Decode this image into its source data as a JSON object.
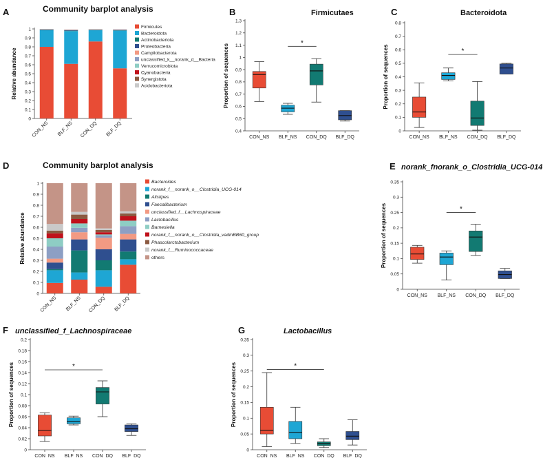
{
  "colors": {
    "Firmicutes": "#e84c35",
    "Bacteroidota": "#1ea6d4",
    "Actinobacteriota": "#127a72",
    "Proteobacteria": "#2f4f8f",
    "Campilobacterota": "#f29a83",
    "unclassified": "#8d9fc4",
    "Verrucomicrobiota": "#8ecdc4",
    "Cyanobacteria": "#c0111b",
    "Synergistota": "#8b5a41",
    "Acidobacteriota": "#c9c9c9",
    "g_Bacteroides": "#e84c35",
    "g_Clostridia014": "#1ea6d4",
    "g_Alistipes": "#127a72",
    "g_Faecalibacterium": "#2f4f8f",
    "g_Lachno": "#f29a83",
    "g_Lacto": "#8d9fc4",
    "g_Barnesiella": "#8ecdc4",
    "g_vadin": "#c0111b",
    "g_Phascol": "#8b5a41",
    "g_Rumino": "#c9c9c9",
    "g_others": "#c49487",
    "box_CON_NS": "#e84c35",
    "box_BLF_NS": "#1ea6d4",
    "box_CON_DQ": "#127a72",
    "box_BLF_DQ": "#2f4f8f"
  },
  "chart_data": [
    {
      "id": "A",
      "panel_letter": "A",
      "type": "bar",
      "stacked": true,
      "title": "Community barplot analysis",
      "ylabel": "Relative abundance",
      "ylim": [
        0,
        1
      ],
      "yticks": [
        "0",
        "0.1",
        "0.2",
        "0.3",
        "0.4",
        "0.5",
        "0.6",
        "0.7",
        "0.8",
        "0.9",
        "1"
      ],
      "categories": [
        "CON_NS",
        "BLF_NS",
        "CON_DQ",
        "BLF_DQ"
      ],
      "series": [
        {
          "name": "Firmicutes",
          "color_key": "Firmicutes",
          "values": [
            0.8,
            0.61,
            0.86,
            0.56
          ]
        },
        {
          "name": "Bacteroidota",
          "color_key": "Bacteroidota",
          "values": [
            0.185,
            0.365,
            0.125,
            0.42
          ]
        },
        {
          "name": "Actinobacteriota",
          "color_key": "Actinobacteriota",
          "values": [
            0.004,
            0.005,
            0.003,
            0.004
          ]
        },
        {
          "name": "Proteobacteria",
          "color_key": "Proteobacteria",
          "values": [
            0.004,
            0.006,
            0.003,
            0.004
          ]
        },
        {
          "name": "Campilobacterota",
          "color_key": "Campilobacterota",
          "values": [
            0.001,
            0.002,
            0.001,
            0.002
          ]
        },
        {
          "name": "unclassified_k__norank_d__Bacteria",
          "color_key": "unclassified",
          "values": [
            0.001,
            0.002,
            0.001,
            0.002
          ]
        },
        {
          "name": "Verrucomicrobiota",
          "color_key": "Verrucomicrobiota",
          "values": [
            0.001,
            0.001,
            0.001,
            0.001
          ]
        },
        {
          "name": "Cyanobacteria",
          "color_key": "Cyanobacteria",
          "values": [
            0.001,
            0.001,
            0.001,
            0.001
          ]
        },
        {
          "name": "Synergistota",
          "color_key": "Synergistota",
          "values": [
            0.001,
            0.001,
            0.001,
            0.001
          ]
        },
        {
          "name": "Acidobacteriota",
          "color_key": "Acidobacteriota",
          "values": [
            0.001,
            0.001,
            0.001,
            0.001
          ]
        }
      ]
    },
    {
      "id": "B",
      "panel_letter": "B",
      "type": "box",
      "title": "Firmicutaes",
      "title_italic": false,
      "ylabel": "Proportion of sequences",
      "ylim": [
        0.4,
        1.3
      ],
      "yticks": [
        "0.4",
        "0.5",
        "0.6",
        "0.7",
        "0.8",
        "0.9",
        "1",
        "1.1",
        "1.2",
        "1.3"
      ],
      "categories": [
        "CON_NS",
        "BLF_NS",
        "CON_DQ",
        "BLF_DQ"
      ],
      "boxes": [
        {
          "name": "CON_NS",
          "color_key": "box_CON_NS",
          "min": 0.64,
          "q1": 0.75,
          "median": 0.86,
          "q3": 0.885,
          "max": 0.965
        },
        {
          "name": "BLF_NS",
          "color_key": "box_BLF_NS",
          "min": 0.535,
          "q1": 0.555,
          "median": 0.585,
          "q3": 0.61,
          "max": 0.625
        },
        {
          "name": "CON_DQ",
          "color_key": "box_CON_DQ",
          "min": 0.635,
          "q1": 0.775,
          "median": 0.89,
          "q3": 0.945,
          "max": 0.99
        },
        {
          "name": "BLF_DQ",
          "color_key": "box_BLF_DQ",
          "min": 0.48,
          "q1": 0.49,
          "median": 0.525,
          "q3": 0.565,
          "max": 0.565
        }
      ],
      "significance": {
        "label": "*",
        "from": "BLF_NS",
        "to": "CON_DQ",
        "y": 1.09
      }
    },
    {
      "id": "C",
      "panel_letter": "C",
      "type": "box",
      "title": "Bacteroidota",
      "title_italic": false,
      "ylabel": "Proportion of sequences",
      "ylim": [
        0,
        0.8
      ],
      "yticks": [
        "0",
        "0.1",
        "0.2",
        "0.3",
        "0.4",
        "0.5",
        "0.6",
        "0.7",
        "0.8"
      ],
      "categories": [
        "CON_NS",
        "BLF_NS",
        "CON_DQ",
        "BLF_DQ"
      ],
      "boxes": [
        {
          "name": "CON_NS",
          "color_key": "box_CON_NS",
          "min": 0.025,
          "q1": 0.1,
          "median": 0.14,
          "q3": 0.25,
          "max": 0.355
        },
        {
          "name": "BLF_NS",
          "color_key": "box_BLF_NS",
          "min": 0.37,
          "q1": 0.38,
          "median": 0.41,
          "q3": 0.43,
          "max": 0.465
        },
        {
          "name": "CON_DQ",
          "color_key": "box_CON_DQ",
          "min": 0.005,
          "q1": 0.04,
          "median": 0.095,
          "q3": 0.22,
          "max": 0.365
        },
        {
          "name": "BLF_DQ",
          "color_key": "box_BLF_DQ",
          "min": 0.42,
          "q1": 0.42,
          "median": 0.465,
          "q3": 0.495,
          "max": 0.5
        }
      ],
      "significance": {
        "label": "*",
        "from": "BLF_NS",
        "to": "CON_DQ",
        "y": 0.565
      }
    },
    {
      "id": "D",
      "panel_letter": "D",
      "type": "bar",
      "stacked": true,
      "title": "Community barplot analysis",
      "ylabel": "Relative abundance",
      "ylim": [
        0,
        1
      ],
      "yticks": [
        "0",
        "0.1",
        "0.2",
        "0.3",
        "0.4",
        "0.5",
        "0.6",
        "0.7",
        "0.8",
        "0.9",
        "1"
      ],
      "categories": [
        "CON_NS",
        "BLF_NS",
        "CON_DQ",
        "BLF_DQ"
      ],
      "series": [
        {
          "name": "Bacteroides",
          "color_key": "g_Bacteroides",
          "values": [
            0.095,
            0.125,
            0.06,
            0.26
          ]
        },
        {
          "name": "norank_f__norank_o__Clostridia_UCG-014",
          "color_key": "g_Clostridia014",
          "values": [
            0.115,
            0.065,
            0.15,
            0.05
          ]
        },
        {
          "name": "Alistipes",
          "color_key": "g_Alistipes",
          "values": [
            0.01,
            0.2,
            0.09,
            0.07
          ]
        },
        {
          "name": "Faecalibacterium",
          "color_key": "g_Faecalibacterium",
          "values": [
            0.06,
            0.1,
            0.1,
            0.11
          ]
        },
        {
          "name": "unclassified_f__Lachnospiraceae",
          "color_key": "g_Lachno",
          "values": [
            0.035,
            0.065,
            0.105,
            0.05
          ]
        },
        {
          "name": "Lactobacillus",
          "color_key": "g_Lacto",
          "values": [
            0.11,
            0.04,
            0.02,
            0.07
          ]
        },
        {
          "name": "Barnesiella",
          "color_key": "g_Barnesiella",
          "values": [
            0.075,
            0.04,
            0.01,
            0.05
          ]
        },
        {
          "name": "norank_f__norank_o__Clostridia_vadinBB60_group",
          "color_key": "g_vadin",
          "values": [
            0.045,
            0.04,
            0.02,
            0.04
          ]
        },
        {
          "name": "Phascolarctobacterium",
          "color_key": "g_Phascol",
          "values": [
            0.025,
            0.04,
            0.02,
            0.025
          ]
        },
        {
          "name": "norank_f__Ruminococcaceae",
          "color_key": "g_Rumino",
          "values": [
            0.06,
            0.025,
            0.015,
            0.02
          ]
        },
        {
          "name": "others",
          "color_key": "g_others",
          "values": [
            0.37,
            0.26,
            0.41,
            0.255
          ]
        }
      ]
    },
    {
      "id": "E",
      "panel_letter": "E",
      "type": "box",
      "title": "norank_fnorank_o_Clostridia_UCG-014",
      "title_italic": true,
      "ylabel": "Proportion of sequences",
      "ylim": [
        0,
        0.35
      ],
      "yticks": [
        "0",
        "0.05",
        "0.1",
        "0.15",
        "0.2",
        "0.25",
        "0.3",
        "0.35"
      ],
      "categories": [
        "CON_NS",
        "BLF_NS",
        "CON_DQ",
        "BLF_DQ"
      ],
      "boxes": [
        {
          "name": "CON_NS",
          "color_key": "box_CON_NS",
          "min": 0.085,
          "q1": 0.097,
          "median": 0.115,
          "q3": 0.137,
          "max": 0.143
        },
        {
          "name": "BLF_NS",
          "color_key": "box_BLF_NS",
          "min": 0.03,
          "q1": 0.08,
          "median": 0.105,
          "q3": 0.118,
          "max": 0.125
        },
        {
          "name": "CON_DQ",
          "color_key": "box_CON_DQ",
          "min": 0.11,
          "q1": 0.123,
          "median": 0.17,
          "q3": 0.19,
          "max": 0.212
        },
        {
          "name": "BLF_DQ",
          "color_key": "box_BLF_DQ",
          "min": 0.035,
          "q1": 0.035,
          "median": 0.048,
          "q3": 0.06,
          "max": 0.068
        }
      ],
      "significance": {
        "label": "*",
        "from": "BLF_NS",
        "to": "CON_DQ",
        "y": 0.25
      }
    },
    {
      "id": "F",
      "panel_letter": "F",
      "type": "box",
      "title": "unclassified_f_Lachnospiraceae",
      "title_italic": true,
      "ylabel": "Proportion of sequences",
      "ylim": [
        0,
        0.2
      ],
      "yticks": [
        "0",
        "0.02",
        "0.04",
        "0.06",
        "0.08",
        "0.1",
        "0.12",
        "0.14",
        "0.16",
        "0.18",
        "0.2"
      ],
      "categories": [
        "CON_NS",
        "BLF_NS",
        "CON_DQ",
        "BLF_DQ"
      ],
      "boxes": [
        {
          "name": "CON_NS",
          "color_key": "box_CON_NS",
          "min": 0.015,
          "q1": 0.025,
          "median": 0.035,
          "q3": 0.063,
          "max": 0.067
        },
        {
          "name": "BLF_NS",
          "color_key": "box_BLF_NS",
          "min": 0.045,
          "q1": 0.047,
          "median": 0.051,
          "q3": 0.058,
          "max": 0.061
        },
        {
          "name": "CON_DQ",
          "color_key": "box_CON_DQ",
          "min": 0.06,
          "q1": 0.083,
          "median": 0.105,
          "q3": 0.113,
          "max": 0.125
        },
        {
          "name": "BLF_DQ",
          "color_key": "box_BLF_DQ",
          "min": 0.026,
          "q1": 0.033,
          "median": 0.038,
          "q3": 0.045,
          "max": 0.047
        }
      ],
      "significance": {
        "label": "*",
        "from": "CON_NS",
        "to": "CON_DQ",
        "y": 0.145
      }
    },
    {
      "id": "G",
      "panel_letter": "G",
      "type": "box",
      "title": "Lactobacillus",
      "title_italic": true,
      "ylabel": "Proportion of sequences",
      "ylim": [
        0,
        0.35
      ],
      "yticks": [
        "0",
        "0.05",
        "0.1",
        "0.15",
        "0.2",
        "0.25",
        "0.3",
        "0.35"
      ],
      "categories": [
        "CON_NS",
        "BLF_NS",
        "CON_DQ",
        "BLF_DQ"
      ],
      "boxes": [
        {
          "name": "CON_NS",
          "color_key": "box_CON_NS",
          "min": 0.01,
          "q1": 0.05,
          "median": 0.062,
          "q3": 0.135,
          "max": 0.245
        },
        {
          "name": "BLF_NS",
          "color_key": "box_BLF_NS",
          "min": 0.02,
          "q1": 0.035,
          "median": 0.055,
          "q3": 0.09,
          "max": 0.135
        },
        {
          "name": "CON_DQ",
          "color_key": "box_CON_DQ",
          "min": 0.007,
          "q1": 0.013,
          "median": 0.02,
          "q3": 0.025,
          "max": 0.035
        },
        {
          "name": "BLF_DQ",
          "color_key": "box_BLF_DQ",
          "min": 0.015,
          "q1": 0.032,
          "median": 0.043,
          "q3": 0.058,
          "max": 0.095
        }
      ],
      "significance": {
        "label": "*",
        "from": "CON_NS",
        "to": "CON_DQ",
        "y": 0.255
      }
    }
  ]
}
